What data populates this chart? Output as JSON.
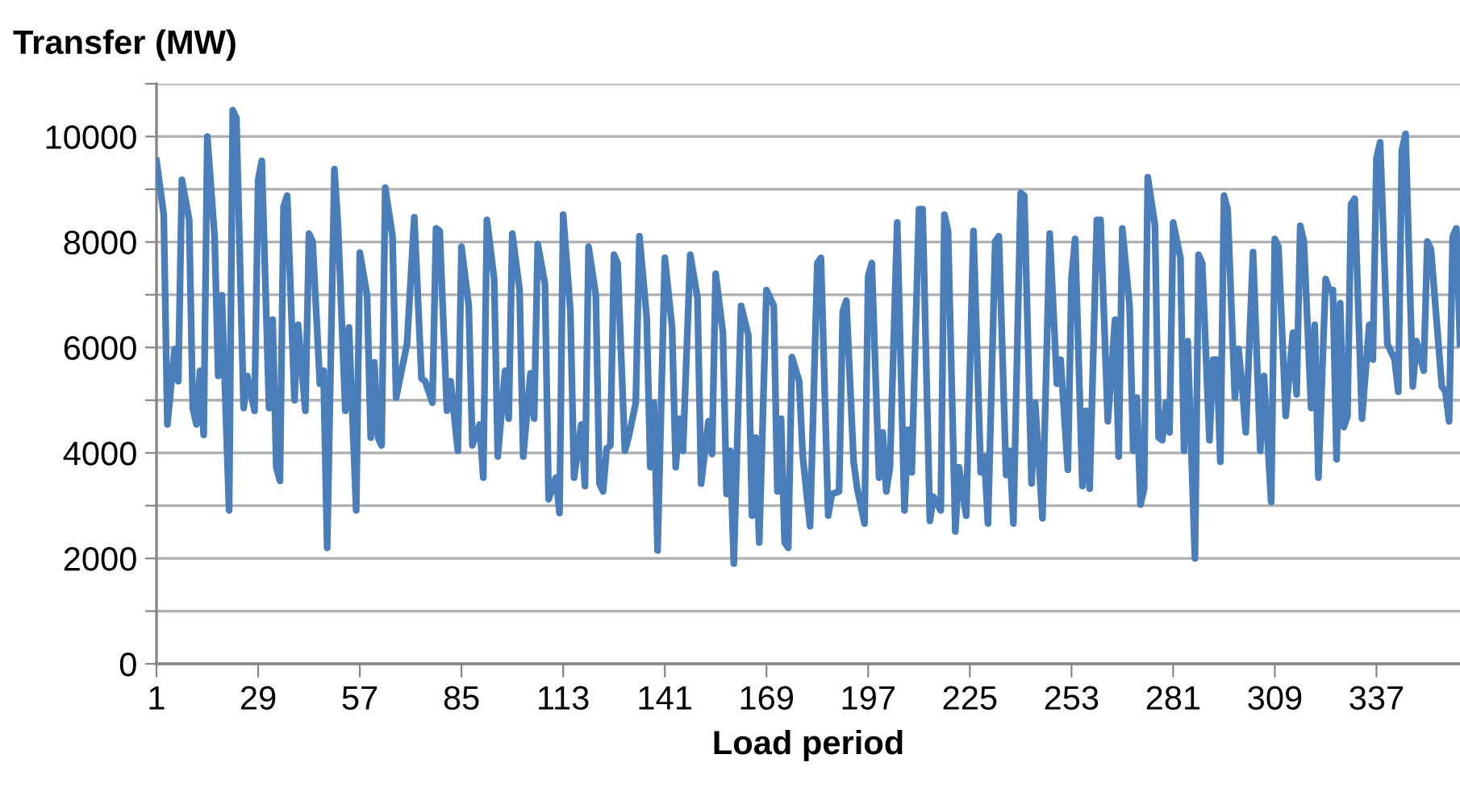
{
  "chart_data": {
    "type": "line",
    "ylabel": "Transfer (MW)",
    "xlabel": "Load period",
    "x": [
      1,
      3,
      4,
      6,
      7,
      8,
      10,
      11,
      12,
      13,
      14,
      15,
      17,
      18,
      19,
      21,
      22,
      23,
      25,
      26,
      28,
      29,
      30,
      32,
      33,
      34,
      35,
      36,
      37,
      39,
      40,
      42,
      43,
      44,
      46,
      47,
      48,
      50,
      51,
      53,
      54,
      56,
      57,
      59,
      60,
      61,
      62,
      63,
      64,
      66,
      67,
      70,
      72,
      74,
      75,
      77,
      78,
      79,
      81,
      82,
      84,
      85,
      87,
      88,
      90,
      91,
      92,
      94,
      95,
      97,
      98,
      99,
      101,
      102,
      104,
      105,
      106,
      108,
      109,
      111,
      112,
      113,
      115,
      116,
      118,
      119,
      120,
      122,
      123,
      124,
      125,
      126,
      127,
      128,
      130,
      131,
      133,
      134,
      136,
      137,
      138,
      139,
      141,
      143,
      144,
      145,
      146,
      148,
      150,
      151,
      153,
      154,
      155,
      157,
      158,
      159,
      160,
      162,
      164,
      165,
      166,
      167,
      169,
      171,
      172,
      173,
      174,
      175,
      176,
      178,
      179,
      181,
      183,
      184,
      186,
      187,
      189,
      190,
      191,
      193,
      194,
      196,
      197,
      198,
      200,
      201,
      202,
      203,
      205,
      207,
      208,
      209,
      211,
      212,
      214,
      215,
      217,
      218,
      219,
      221,
      222,
      224,
      226,
      228,
      229,
      230,
      232,
      233,
      235,
      236,
      237,
      239,
      240,
      242,
      243,
      245,
      247,
      249,
      250,
      252,
      253,
      254,
      256,
      257,
      258,
      260,
      261,
      263,
      265,
      266,
      267,
      269,
      270,
      271,
      272,
      273,
      274,
      276,
      277,
      278,
      279,
      280,
      281,
      283,
      284,
      285,
      287,
      288,
      289,
      291,
      292,
      293,
      294,
      295,
      296,
      298,
      299,
      300,
      301,
      303,
      305,
      306,
      308,
      309,
      310,
      312,
      314,
      315,
      316,
      317,
      319,
      320,
      321,
      323,
      324,
      325,
      326,
      327,
      328,
      329,
      330,
      331,
      333,
      335,
      336,
      337,
      338,
      340,
      342,
      343,
      344,
      345,
      347,
      348,
      350,
      351,
      352,
      355,
      356,
      357,
      358,
      359,
      360
    ],
    "series": [
      {
        "color": "#4a7ebb",
        "values": [
          9540,
          8520,
          4540,
          5970,
          5360,
          9180,
          8420,
          4850,
          4540,
          5560,
          4340,
          10000,
          8110,
          5460,
          6990,
          2910,
          10500,
          10350,
          4850,
          5460,
          4800,
          9180,
          9540,
          4850,
          6530,
          3730,
          3470,
          8670,
          8880,
          5000,
          6430,
          4800,
          8160,
          8010,
          5310,
          5560,
          2200,
          9380,
          8310,
          4800,
          6380,
          2910,
          7800,
          6990,
          4290,
          5720,
          4290,
          4140,
          9030,
          8110,
          5050,
          6070,
          8470,
          5410,
          5360,
          4950,
          8260,
          8210,
          4800,
          5360,
          4040,
          7910,
          6790,
          4140,
          4540,
          3530,
          8420,
          7300,
          3930,
          5560,
          4650,
          8160,
          7090,
          3930,
          5510,
          4650,
          7960,
          7200,
          3120,
          3530,
          2860,
          8520,
          6680,
          3530,
          4540,
          3370,
          7910,
          6990,
          3420,
          3270,
          4090,
          4140,
          7760,
          7600,
          4040,
          4290,
          4950,
          8110,
          6580,
          3730,
          4950,
          2150,
          7700,
          6380,
          3730,
          4650,
          4040,
          7760,
          6940,
          3420,
          4600,
          3980,
          7400,
          6280,
          3220,
          4040,
          1900,
          6790,
          6230,
          2810,
          4290,
          2300,
          7090,
          6790,
          3270,
          4650,
          2300,
          2200,
          5820,
          5360,
          3930,
          2610,
          7600,
          7700,
          2810,
          3220,
          3270,
          6680,
          6890,
          3830,
          3320,
          2660,
          7350,
          7600,
          3530,
          4390,
          3270,
          3730,
          8370,
          2910,
          4440,
          3630,
          8620,
          8620,
          2710,
          3170,
          2910,
          8520,
          8210,
          2510,
          3730,
          2810,
          8210,
          3630,
          3930,
          2660,
          8010,
          8110,
          3580,
          4040,
          2660,
          8930,
          8880,
          3420,
          4950,
          2760,
          8160,
          5310,
          5770,
          3680,
          7300,
          8060,
          3370,
          4800,
          3320,
          8420,
          8420,
          4600,
          6530,
          3930,
          8260,
          6790,
          4040,
          5050,
          3020,
          3320,
          9230,
          8310,
          4290,
          4240,
          4950,
          4390,
          8370,
          7700,
          4040,
          6120,
          2000,
          7760,
          7600,
          4240,
          5770,
          5770,
          3830,
          8880,
          8620,
          5050,
          5970,
          5260,
          4390,
          7810,
          4040,
          5460,
          3070,
          8060,
          7910,
          4700,
          6280,
          5110,
          8310,
          8010,
          4850,
          6430,
          3530,
          7300,
          7090,
          7090,
          3880,
          6840,
          4490,
          4700,
          8720,
          8820,
          4650,
          6430,
          5770,
          9590,
          9890,
          6070,
          5770,
          5160,
          9740,
          10050,
          5260,
          6120,
          5560,
          8010,
          7860,
          5260,
          5160,
          4600,
          8110,
          8260,
          6070
        ]
      }
    ],
    "xlim": [
      1,
      360
    ],
    "xticks": [
      1,
      29,
      57,
      85,
      113,
      141,
      169,
      197,
      225,
      253,
      281,
      309,
      337
    ],
    "ylim": [
      0,
      11000
    ],
    "yticks": [
      0,
      {
        "value": 1000,
        "label": null
      },
      2000,
      {
        "value": 3000,
        "label": null
      },
      4000,
      {
        "value": 5000,
        "label": null
      },
      6000,
      {
        "value": 7000,
        "label": null
      },
      8000,
      {
        "value": 9000,
        "label": null
      },
      10000,
      {
        "value": 11000,
        "label": null
      }
    ],
    "grid": "y",
    "line_style": "solid",
    "marker": "none",
    "legend": false
  }
}
